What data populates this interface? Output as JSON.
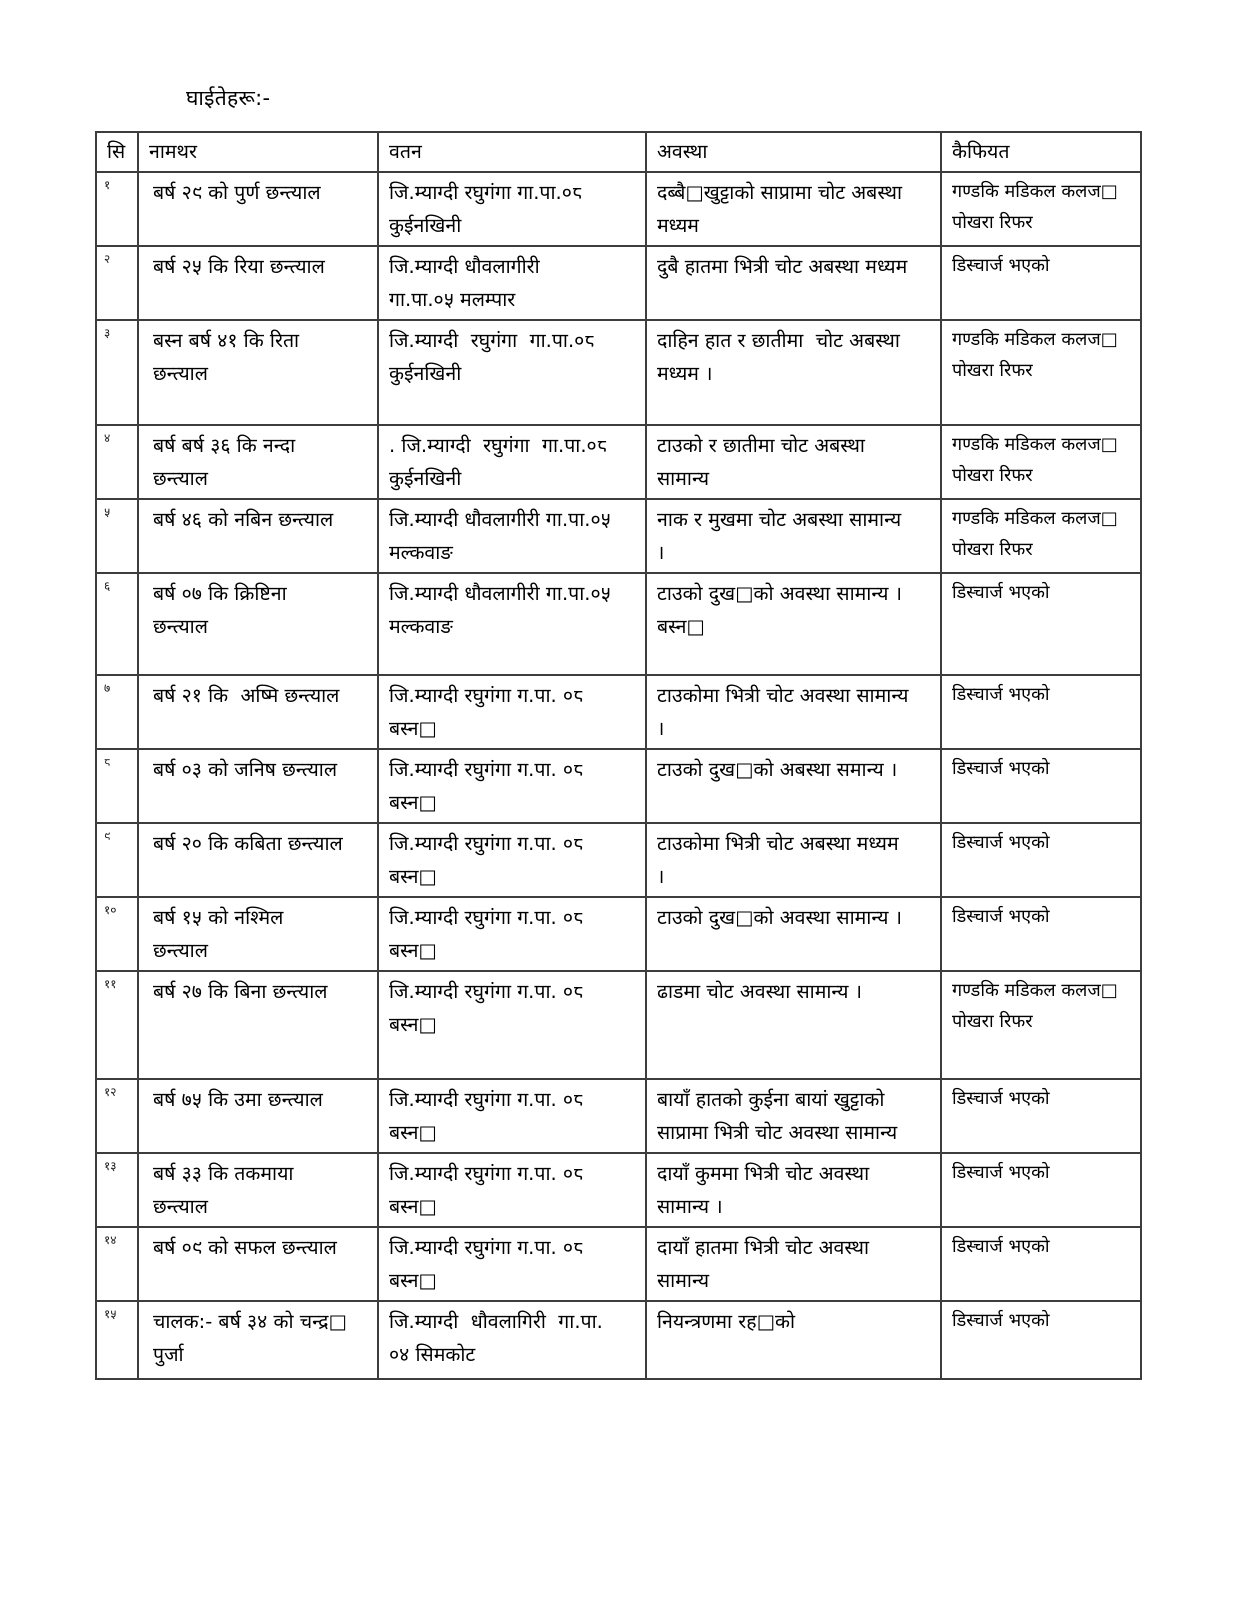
{
  "page": {
    "title": "घाईतेहरू:-"
  },
  "colors": {
    "background": "#ffffff",
    "text": "#000000",
    "table_border": "#3d3d3d"
  },
  "table": {
    "headers": {
      "sn": "सि",
      "name": "नामथर",
      "watan": "वतन",
      "condition": "अवस्था",
      "remark": "कैफियत"
    },
    "rows": [
      {
        "sn": "१",
        "name": "बर्ष २९ को पुर्ण छन्त्याल",
        "watan": "जि.म्याग्दी रघुगंगा गा.पा.०८\nकुईनखिनी",
        "condition": "दब्बै□खुट्टाको साप्रामा चोट अबस्था\nमध्यम",
        "remark": "गण्डकि मडिकल कलज□\nपोखरा रिफर"
      },
      {
        "sn": "२",
        "name": "बर्ष २५ कि रिया छन्त्याल",
        "watan": "जि.म्याग्दी धौवलागीरी\nगा.पा.०५ मलम्पार",
        "condition": "दुबै हातमा भित्री चोट अबस्था मध्यम",
        "remark": "डिस्चार्ज भएको"
      },
      {
        "sn": "३",
        "name": "बस्न बर्ष ४१ कि रिता\nछन्त्याल",
        "watan": "जि.म्याग्दी  रघुगंगा  गा.पा.०८\nकुईनखिनी",
        "condition": "दाहिन हात र छातीमा  चोट अबस्था\nमध्यम ।",
        "remark": "गण्डकि मडिकल कलज□\nपोखरा रिफर"
      },
      {
        "sn": "४",
        "name": "बर्ष बर्ष ३६ कि नन्दा\nछन्त्याल",
        "watan": ". जि.म्याग्दी  रघुगंगा  गा.पा.०८\nकुईनखिनी",
        "condition": "टाउको र छातीमा चोट अबस्था\nसामान्य",
        "remark": "गण्डकि मडिकल कलज□\nपोखरा रिफर"
      },
      {
        "sn": "५",
        "name": "बर्ष ४६ को नबिन छन्त्याल",
        "watan": "जि.म्याग्दी धौवलागीरी गा.पा.०५\nमल्कवाङ",
        "condition": "नाक र मुखमा चोट अबस्था सामान्य\n।",
        "remark": "गण्डकि मडिकल कलज□\nपोखरा रिफर"
      },
      {
        "sn": "६",
        "name": "बर्ष ०७ कि क्रिष्टिना\nछन्त्याल",
        "watan": "जि.म्याग्दी धौवलागीरी गा.पा.०५\nमल्कवाङ",
        "condition": "टाउको दुख□को अवस्था सामान्य ।\nबस्न□",
        "remark": "डिस्चार्ज भएको"
      },
      {
        "sn": "७",
        "name": "बर्ष २१ कि  अष्मि छन्त्याल",
        "watan": "जि.म्याग्दी रघुगंगा ग.पा. ०८ बस्न□",
        "condition": "टाउकोमा भित्री चोट अवस्था सामान्य\n।",
        "remark": "डिस्चार्ज भएको"
      },
      {
        "sn": "८",
        "name": "बर्ष ०३ को जनिष छन्त्याल",
        "watan": "जि.म्याग्दी रघुगंगा ग.पा. ०८ बस्न□",
        "condition": "टाउको दुख□को अबस्था समान्य ।",
        "remark": "डिस्चार्ज भएको"
      },
      {
        "sn": "९",
        "name": "बर्ष २० कि कबिता छन्त्याल",
        "watan": "जि.म्याग्दी रघुगंगा ग.पा. ०८ बस्न□",
        "condition": "टाउकोमा भित्री चोट अबस्था मध्यम\n।",
        "remark": "डिस्चार्ज भएको"
      },
      {
        "sn": "१०",
        "name": "बर्ष १५ को नश्मिल\nछन्त्याल",
        "watan": "जि.म्याग्दी रघुगंगा ग.पा. ०८ बस्न□",
        "condition": "टाउको दुख□को अवस्था सामान्य ।",
        "remark": "डिस्चार्ज भएको"
      },
      {
        "sn": "११",
        "name": "बर्ष २७ कि बिना छन्त्याल",
        "watan": "जि.म्याग्दी रघुगंगा ग.पा. ०८ बस्न□",
        "condition": "ढाडमा चोट अवस्था सामान्य ।",
        "remark": "गण्डकि मडिकल कलज□\nपोखरा रिफर"
      },
      {
        "sn": "१२",
        "name": "बर्ष ७५ कि उमा छन्त्याल",
        "watan": "जि.म्याग्दी रघुगंगा ग.पा. ०८ बस्न□",
        "condition": "बायाँ हातको कुईना बायां खुट्टाको\nसाप्रामा भित्री चोट अवस्था सामान्य",
        "remark": "डिस्चार्ज भएको"
      },
      {
        "sn": "१३",
        "name": "बर्ष ३३ कि तकमाया\nछन्त्याल",
        "watan": "जि.म्याग्दी रघुगंगा ग.पा. ०८ बस्न□",
        "condition": "दायाँ कुममा भित्री चोट अवस्था\nसामान्य ।",
        "remark": "डिस्चार्ज भएको"
      },
      {
        "sn": "१४",
        "name": "बर्ष ०९ को सफल छन्त्याल",
        "watan": "जि.म्याग्दी रघुगंगा ग.पा. ०८ बस्न□",
        "condition": "दायाँ हातमा भित्री चोट अवस्था\nसामान्य",
        "remark": "डिस्चार्ज भएको"
      },
      {
        "sn": "१५",
        "name": "चालक:- बर्ष ३४ को चन्द्र□\nपुर्जा",
        "watan": "जि.म्याग्दी  धौवलागिरी  गा.पा.\n०४ सिमकोट",
        "condition": "नियन्त्रणमा रह□को",
        "remark": "डिस्चार्ज भएको"
      }
    ]
  }
}
